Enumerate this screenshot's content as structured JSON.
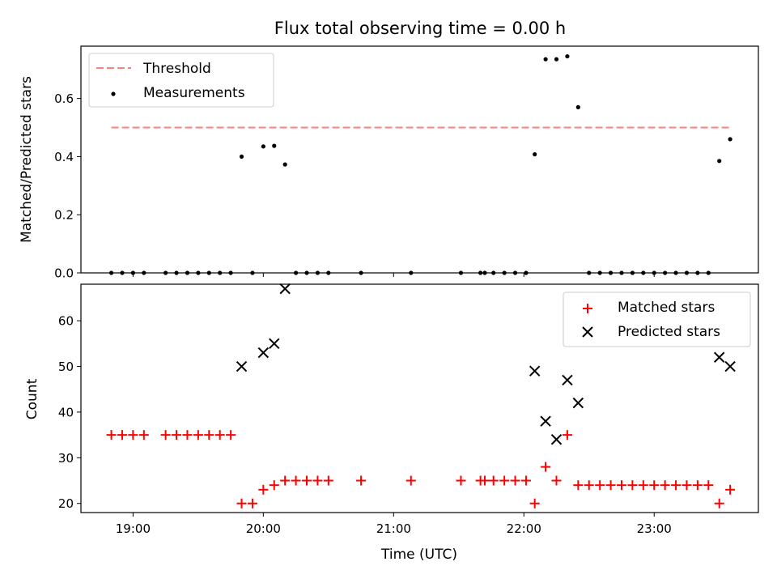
{
  "chart_data": {
    "title": "Flux total observing time = 0.00 h",
    "charts": [
      {
        "type": "scatter",
        "ylabel": "Matched/Predicted stars",
        "ylim": [
          0.0,
          0.78
        ],
        "yticks": [
          0.0,
          0.2,
          0.4,
          0.6
        ],
        "ytick_labels": [
          "0.0",
          "0.2",
          "0.4",
          "0.6"
        ],
        "legend": {
          "placement": "upper left",
          "entries": [
            "Threshold",
            "Measurements"
          ]
        },
        "threshold": {
          "name": "Threshold",
          "y": 0.5,
          "x_range": [
            "18:50",
            "23:35"
          ],
          "color": "#ff7f7f",
          "style": "dashed"
        },
        "series": [
          {
            "name": "Measurements",
            "marker": "dot",
            "color": "#000000",
            "x": [
              "18:50",
              "18:55",
              "19:00",
              "19:05",
              "19:15",
              "19:20",
              "19:25",
              "19:30",
              "19:35",
              "19:40",
              "19:45",
              "19:50",
              "19:55",
              "20:00",
              "20:05",
              "20:10",
              "20:15",
              "20:20",
              "20:25",
              "20:30",
              "20:45",
              "21:08",
              "21:31",
              "21:40",
              "21:42",
              "21:46",
              "21:51",
              "21:56",
              "22:01",
              "22:05",
              "22:10",
              "22:15",
              "22:20",
              "22:25",
              "22:30",
              "22:35",
              "22:40",
              "22:45",
              "22:50",
              "22:55",
              "23:00",
              "23:05",
              "23:10",
              "23:15",
              "23:20",
              "23:25",
              "23:30",
              "23:35"
            ],
            "values": [
              0.0,
              0.0,
              0.0,
              0.0,
              0.0,
              0.0,
              0.0,
              0.0,
              0.0,
              0.0,
              0.0,
              0.4,
              0.0,
              0.435,
              0.437,
              0.373,
              0.0,
              0.0,
              0.0,
              0.0,
              0.0,
              0.0,
              0.0,
              0.0,
              0.0,
              0.0,
              0.0,
              0.0,
              0.0,
              0.408,
              0.735,
              0.735,
              0.745,
              0.57,
              0.0,
              0.0,
              0.0,
              0.0,
              0.0,
              0.0,
              0.0,
              0.0,
              0.0,
              0.0,
              0.0,
              0.0,
              0.385,
              0.46
            ]
          }
        ]
      },
      {
        "type": "scatter",
        "xlabel": "Time (UTC)",
        "ylabel": "Count",
        "ylim": [
          18,
          68
        ],
        "yticks": [
          20,
          30,
          40,
          50,
          60
        ],
        "ytick_labels": [
          "20",
          "30",
          "40",
          "50",
          "60"
        ],
        "xlim": [
          "18:36",
          "23:48"
        ],
        "xticks": [
          "19:00",
          "20:00",
          "21:00",
          "22:00",
          "23:00"
        ],
        "xtick_labels": [
          "19:00",
          "20:00",
          "21:00",
          "22:00",
          "23:00"
        ],
        "legend": {
          "placement": "upper right",
          "entries": [
            "Matched stars",
            "Predicted stars"
          ]
        },
        "series": [
          {
            "name": "Matched stars",
            "marker": "plus",
            "color": "#ff0000",
            "x": [
              "18:50",
              "18:55",
              "19:00",
              "19:05",
              "19:15",
              "19:20",
              "19:25",
              "19:30",
              "19:35",
              "19:40",
              "19:45",
              "19:50",
              "19:55",
              "20:00",
              "20:05",
              "20:10",
              "20:15",
              "20:20",
              "20:25",
              "20:30",
              "20:45",
              "21:08",
              "21:31",
              "21:40",
              "21:42",
              "21:46",
              "21:51",
              "21:56",
              "22:01",
              "22:05",
              "22:10",
              "22:15",
              "22:20",
              "22:25",
              "22:30",
              "22:35",
              "22:40",
              "22:45",
              "22:50",
              "22:55",
              "23:00",
              "23:05",
              "23:10",
              "23:15",
              "23:20",
              "23:25",
              "23:30",
              "23:35"
            ],
            "values": [
              35,
              35,
              35,
              35,
              35,
              35,
              35,
              35,
              35,
              35,
              35,
              20,
              20,
              23,
              24,
              25,
              25,
              25,
              25,
              25,
              25,
              25,
              25,
              25,
              25,
              25,
              25,
              25,
              25,
              20,
              28,
              25,
              35,
              24,
              24,
              24,
              24,
              24,
              24,
              24,
              24,
              24,
              24,
              24,
              24,
              24,
              20,
              23
            ]
          },
          {
            "name": "Predicted stars",
            "marker": "x",
            "color": "#000000",
            "x": [
              "19:50",
              "20:00",
              "20:05",
              "20:10",
              "22:05",
              "22:10",
              "22:15",
              "22:20",
              "22:25",
              "23:30",
              "23:35"
            ],
            "values": [
              50,
              53,
              55,
              67,
              49,
              38,
              34,
              47,
              42,
              52,
              50
            ]
          }
        ]
      }
    ]
  }
}
